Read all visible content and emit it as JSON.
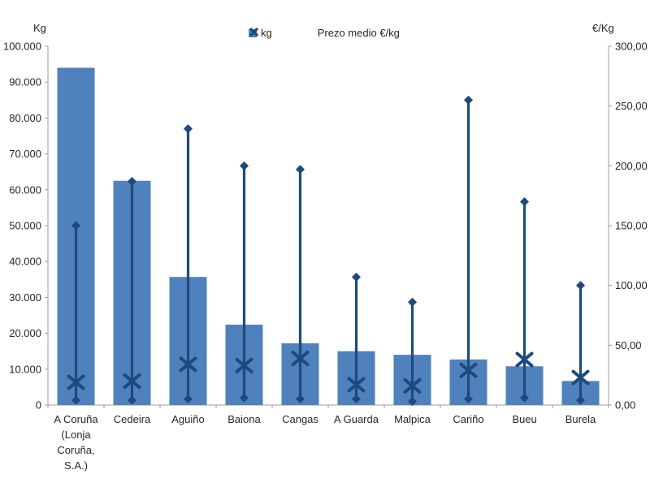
{
  "chart_data": {
    "type": "bar",
    "title": "",
    "categories": [
      "A Coruña (Lonja Coruña, S.A.)",
      "Cedeira",
      "Aguiño",
      "Baiona",
      "Cangas",
      "A Guarda",
      "Malpica",
      "Cariño",
      "Bueu",
      "Burela"
    ],
    "series": [
      {
        "name": "kg",
        "type": "bar",
        "axis": "left",
        "color": "#4F81BD",
        "values": [
          94000,
          62500,
          35700,
          22400,
          17200,
          15000,
          14000,
          12700,
          10800,
          6700
        ]
      },
      {
        "name": "Prezo medio €/kg",
        "type": "scatter",
        "marker": "x",
        "axis": "right",
        "color": "#1F497D",
        "values": [
          19,
          20,
          34,
          33,
          39,
          17,
          16,
          29,
          38,
          23
        ],
        "range_high": [
          150,
          187,
          231,
          200,
          197,
          107,
          86,
          255,
          170,
          100
        ],
        "range_low": [
          4,
          4,
          5,
          6,
          5,
          5,
          3,
          5,
          6,
          4
        ]
      }
    ],
    "left_axis": {
      "title": "Kg",
      "min": 0,
      "max": 100000,
      "step": 10000,
      "tick_labels": [
        "0",
        "10.000",
        "20.000",
        "30.000",
        "40.000",
        "50.000",
        "60.000",
        "70.000",
        "80.000",
        "90.000",
        "100.000"
      ]
    },
    "right_axis": {
      "title": "€/Kg",
      "min": 0,
      "max": 300,
      "step": 50,
      "tick_labels": [
        "0,00",
        "50,00",
        "100,00",
        "150,00",
        "200,00",
        "250,00",
        "300,00"
      ]
    },
    "x_axis": {
      "category_label_lines": [
        [
          "A Coruña",
          "(Lonja",
          "Coruña,",
          "S.A.)"
        ],
        [
          "Cedeira"
        ],
        [
          "Aguiño"
        ],
        [
          "Baiona"
        ],
        [
          "Cangas"
        ],
        [
          "A Guarda"
        ],
        [
          "Malpica"
        ],
        [
          "Cariño"
        ],
        [
          "Bueu"
        ],
        [
          "Burela"
        ]
      ]
    },
    "legend": {
      "position": "top",
      "items": [
        {
          "label": "kg",
          "marker": "square",
          "color": "#4F81BD"
        },
        {
          "label": "Prezo medio €/kg",
          "marker": "x",
          "color": "#1F497D"
        }
      ]
    },
    "grid": false,
    "axis_color": "#9C9C9C",
    "text_color": "#262626"
  }
}
